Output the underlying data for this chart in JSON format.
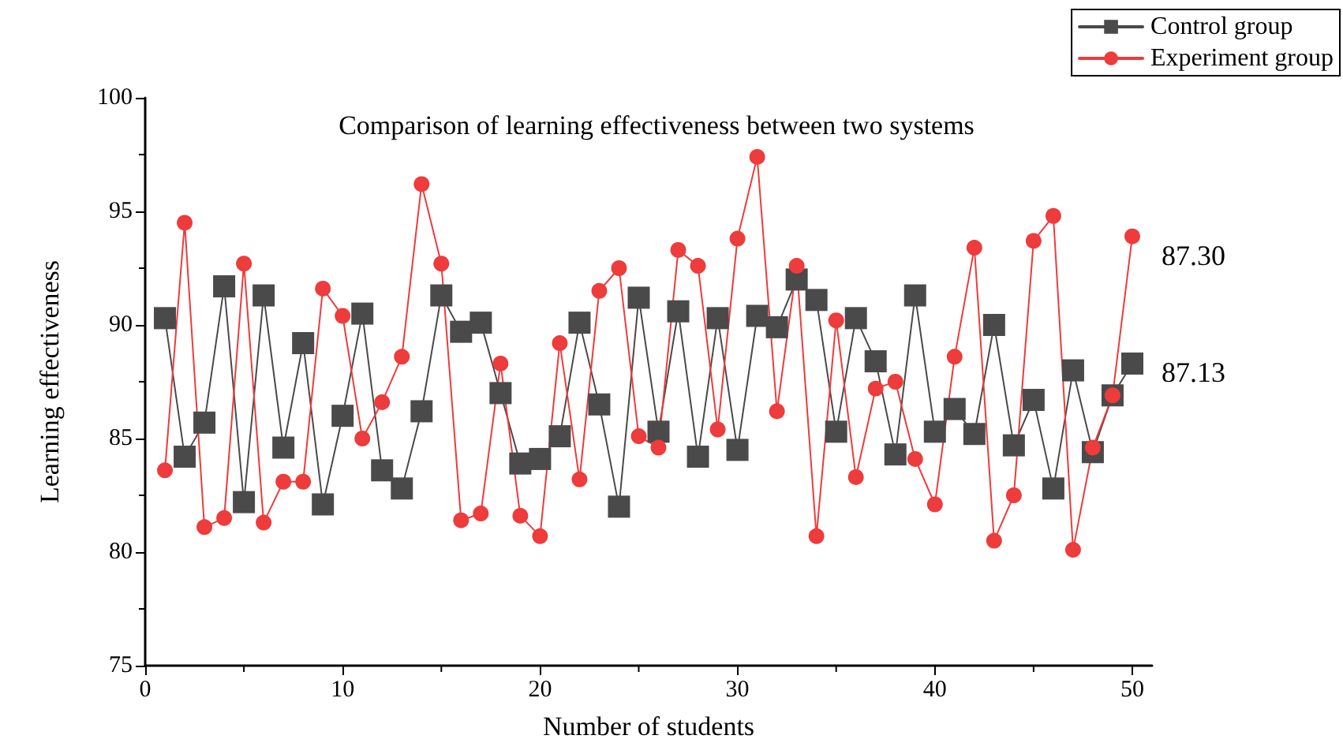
{
  "chart_data": {
    "type": "line",
    "title": "Comparison of learning effectiveness between two systems",
    "xlabel": "Number of students",
    "ylabel": "Learning effectiveness",
    "x": [
      1,
      2,
      3,
      4,
      5,
      6,
      7,
      8,
      9,
      10,
      11,
      12,
      13,
      14,
      15,
      16,
      17,
      18,
      19,
      20,
      21,
      22,
      23,
      24,
      25,
      26,
      27,
      28,
      29,
      30,
      31,
      32,
      33,
      34,
      35,
      36,
      37,
      38,
      39,
      40,
      41,
      42,
      43,
      44,
      45,
      46,
      47,
      48,
      49,
      50
    ],
    "series": [
      {
        "name": "Control group",
        "color": "#4a4a4a",
        "marker": "square",
        "values": [
          90.3,
          84.2,
          85.7,
          91.7,
          82.2,
          91.3,
          84.6,
          89.2,
          82.1,
          86.0,
          90.5,
          83.6,
          82.8,
          86.2,
          91.3,
          89.7,
          90.1,
          87.0,
          83.9,
          84.1,
          85.1,
          90.1,
          86.5,
          82.0,
          91.2,
          85.3,
          90.6,
          84.2,
          90.3,
          84.5,
          90.4,
          89.9,
          92.0,
          91.1,
          85.3,
          90.3,
          88.4,
          84.3,
          91.3,
          85.3,
          86.3,
          85.2,
          90.0,
          84.7,
          86.7,
          82.8,
          88.0,
          84.4,
          86.9,
          88.3
        ]
      },
      {
        "name": "Experiment group",
        "color": "#ee3b3b",
        "marker": "circle",
        "values": [
          83.6,
          94.5,
          81.1,
          81.5,
          92.7,
          81.3,
          83.1,
          83.1,
          91.6,
          90.4,
          85.0,
          86.6,
          88.6,
          96.2,
          92.7,
          81.4,
          81.7,
          88.3,
          81.6,
          80.7,
          89.2,
          83.2,
          91.5,
          92.5,
          85.1,
          84.6,
          93.3,
          92.6,
          85.4,
          93.8,
          97.4,
          86.2,
          92.6,
          80.7,
          90.2,
          83.3,
          87.2,
          87.5,
          84.1,
          82.1,
          88.6,
          93.4,
          80.5,
          82.5,
          93.7,
          94.8,
          80.1,
          84.6,
          86.9,
          93.9
        ]
      }
    ],
    "annotations": [
      "87.30",
      "87.13"
    ],
    "xlim": [
      0,
      51
    ],
    "xticks": [
      0,
      10,
      20,
      30,
      40,
      50
    ],
    "ylim": [
      75,
      100
    ],
    "yticks": [
      75,
      80,
      85,
      90,
      95,
      100
    ],
    "grid": false,
    "legend": "top right",
    "line_style": "solid"
  }
}
